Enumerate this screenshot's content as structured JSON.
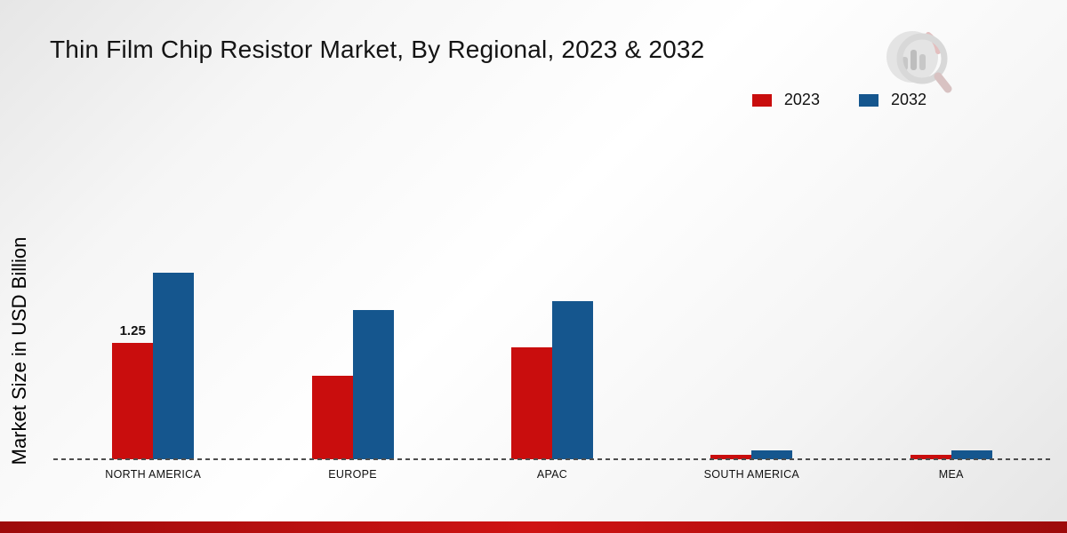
{
  "title": "Thin Film Chip Resistor Market, By Regional, 2023 & 2032",
  "ylabel": "Market Size in USD Billion",
  "branding": {
    "logo_icon": "bar-chart-magnifier-logo"
  },
  "footer_bar": {
    "colors": [
      "#9d0b0b",
      "#cf1313",
      "#9d0b0b"
    ]
  },
  "chart_data": {
    "type": "bar",
    "categories": [
      "NORTH AMERICA",
      "EUROPE",
      "APAC",
      "SOUTH AMERICA",
      "MEA"
    ],
    "series": [
      {
        "name": "2023",
        "color": "#c90d0d",
        "values": [
          1.25,
          0.9,
          1.2,
          0.05,
          0.05
        ]
      },
      {
        "name": "2032",
        "color": "#15568e",
        "values": [
          2.0,
          1.6,
          1.7,
          0.1,
          0.1
        ]
      }
    ],
    "ylim": [
      0,
      2.5
    ],
    "xlabel": "",
    "ylabel": "Market Size in USD Billion",
    "grid": false,
    "baseline_style": "dashed",
    "legend_position": "top-right",
    "annotations": [
      {
        "series": "2023",
        "category": "NORTH AMERICA",
        "text": "1.25"
      }
    ]
  }
}
